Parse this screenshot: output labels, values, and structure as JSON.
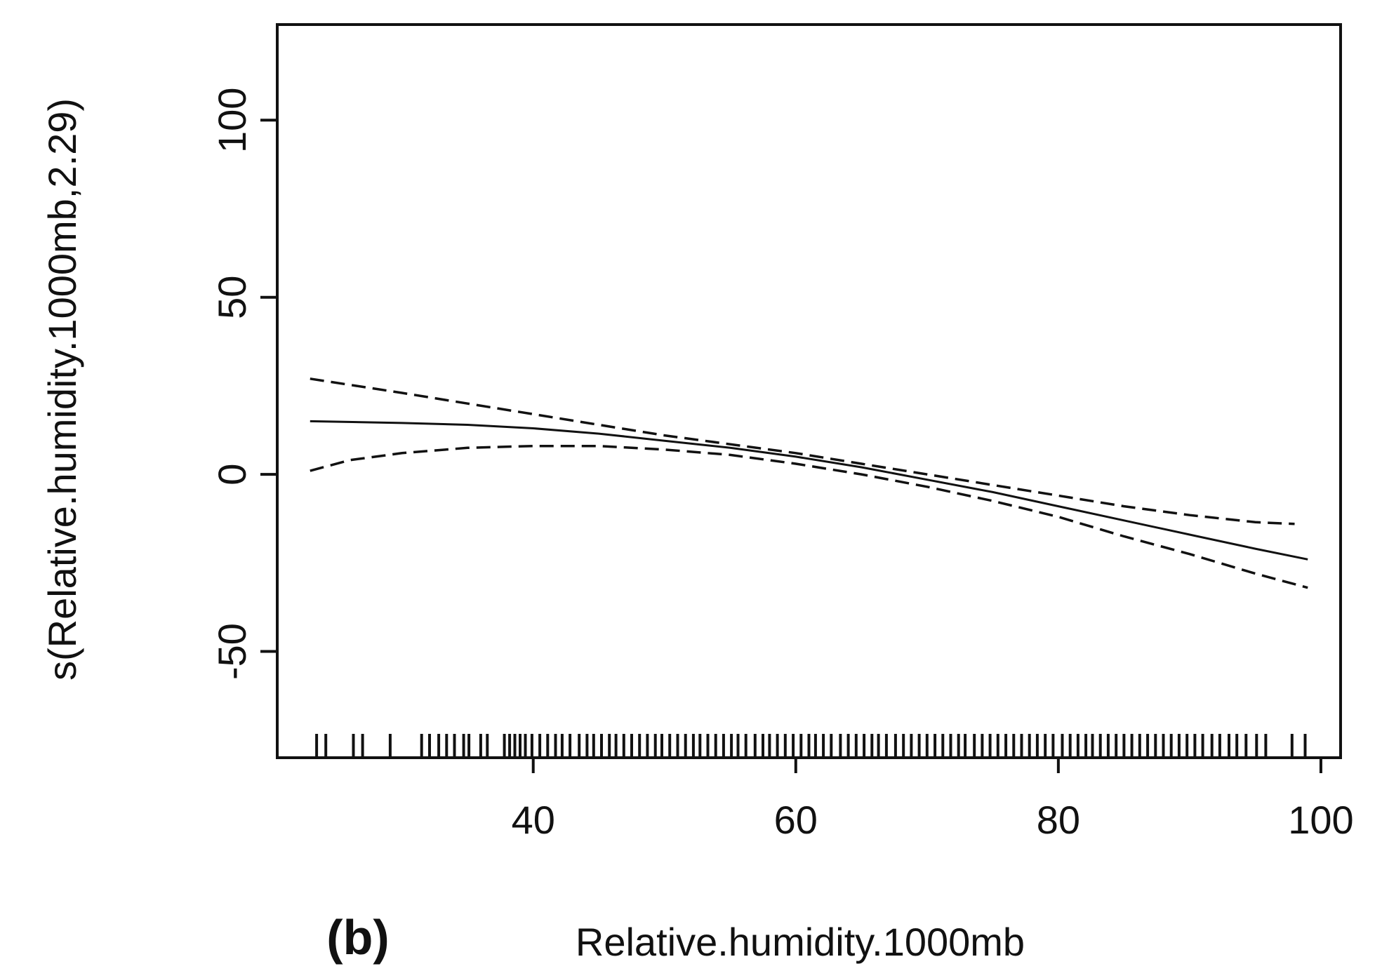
{
  "chart_data": {
    "type": "line",
    "panel_label": "(b)",
    "xlabel": "Relative.humidity.1000mb",
    "ylabel": "s(Relative.humidity.1000mb,2.29)",
    "xlim": [
      20.5,
      101.5
    ],
    "ylim": [
      -80,
      127
    ],
    "x_ticks": [
      40,
      60,
      80,
      100
    ],
    "y_ticks": [
      -50,
      0,
      50,
      100
    ],
    "grid": false,
    "series": [
      {
        "name": "smooth",
        "style": "solid",
        "x": [
          23,
          30,
          35,
          40,
          45,
          50,
          55,
          60,
          65,
          70,
          75,
          80,
          85,
          90,
          95,
          99
        ],
        "y": [
          15,
          14.5,
          14,
          13,
          11.5,
          9.5,
          7.5,
          5,
          2,
          -1.5,
          -5,
          -9,
          -13,
          -17,
          -21,
          -24
        ]
      },
      {
        "name": "upper bound",
        "style": "dashed",
        "x": [
          23,
          30,
          35,
          40,
          45,
          50,
          55,
          60,
          65,
          70,
          75,
          80,
          85,
          90,
          95,
          98
        ],
        "y": [
          27,
          23,
          20,
          17,
          14,
          11,
          8.5,
          6,
          3,
          0,
          -3,
          -6,
          -9,
          -11.5,
          -13.5,
          -14
        ]
      },
      {
        "name": "lower bound",
        "style": "dashed",
        "x": [
          23,
          26,
          30,
          35,
          40,
          45,
          50,
          55,
          60,
          65,
          70,
          75,
          80,
          85,
          90,
          95,
          99
        ],
        "y": [
          1,
          4,
          6,
          7.5,
          8,
          8,
          7,
          5.5,
          3,
          0,
          -3.5,
          -7.5,
          -12,
          -17.5,
          -22.5,
          -28,
          -32
        ]
      }
    ],
    "rug": [
      23.5,
      24.2,
      26.3,
      27.0,
      29.1,
      31.5,
      32.1,
      32.8,
      33.4,
      34.0,
      34.7,
      35.1,
      36.0,
      36.5,
      37.8,
      38.2,
      38.6,
      39.0,
      39.4,
      39.9,
      40.5,
      41.1,
      41.7,
      42.2,
      42.8,
      43.5,
      44.1,
      44.6,
      45.2,
      45.8,
      46.3,
      46.9,
      47.5,
      48.1,
      48.7,
      49.3,
      49.8,
      50.4,
      51.0,
      51.6,
      52.2,
      52.7,
      53.3,
      53.9,
      54.5,
      55.1,
      55.6,
      56.2,
      56.9,
      57.5,
      58.0,
      58.6,
      59.2,
      59.8,
      60.4,
      61.0,
      61.5,
      62.1,
      62.7,
      63.4,
      64.0,
      64.6,
      65.2,
      65.8,
      66.3,
      66.9,
      67.6,
      68.2,
      68.8,
      69.4,
      70.0,
      70.6,
      71.2,
      71.8,
      72.4,
      72.9,
      73.6,
      74.2,
      74.8,
      75.4,
      76.0,
      76.6,
      77.2,
      77.8,
      78.4,
      79.0,
      79.6,
      80.3,
      80.9,
      81.5,
      82.1,
      82.6,
      83.2,
      83.8,
      84.4,
      85.0,
      85.6,
      86.2,
      86.8,
      87.4,
      88.0,
      88.6,
      89.2,
      89.8,
      90.4,
      91.0,
      91.7,
      92.3,
      93.0,
      93.6,
      94.3,
      95.1,
      95.8,
      97.8,
      98.8
    ]
  }
}
